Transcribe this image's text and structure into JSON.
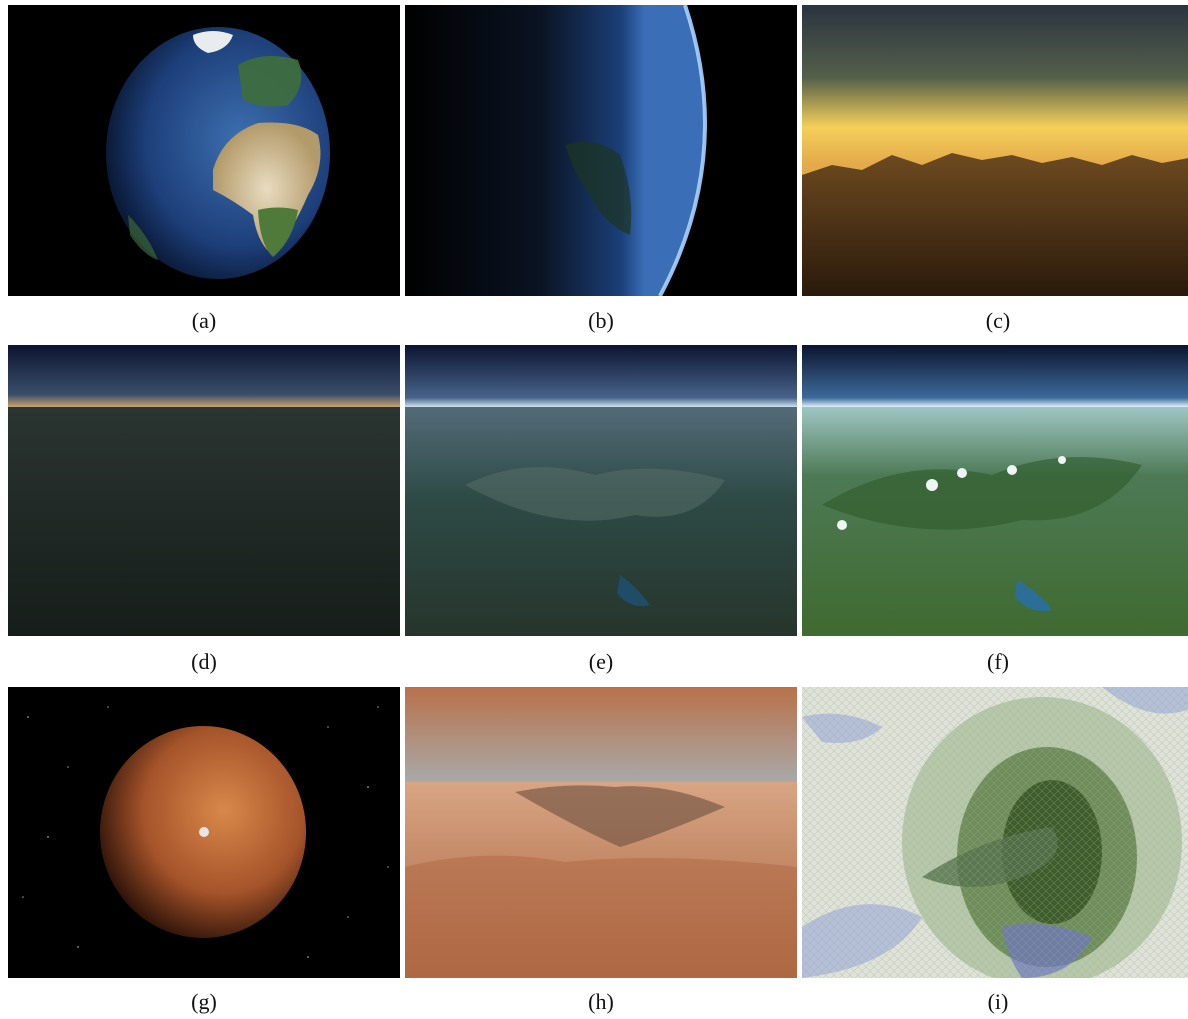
{
  "figure": {
    "panels": [
      {
        "id": "a",
        "caption": "(a)",
        "subject": "earth-globe"
      },
      {
        "id": "b",
        "caption": "(b)",
        "subject": "earth-limb"
      },
      {
        "id": "c",
        "caption": "(c)",
        "subject": "sunset-mountains"
      },
      {
        "id": "d",
        "caption": "(d)",
        "subject": "dark-alps-horizon"
      },
      {
        "id": "e",
        "caption": "(e)",
        "subject": "dim-alps-horizon"
      },
      {
        "id": "f",
        "caption": "(f)",
        "subject": "lit-alps-horizon"
      },
      {
        "id": "g",
        "caption": "(g)",
        "subject": "mars-globe"
      },
      {
        "id": "h",
        "caption": "(h)",
        "subject": "mars-canyon"
      },
      {
        "id": "i",
        "caption": "(i)",
        "subject": "lod-mesh-overlay"
      }
    ]
  }
}
